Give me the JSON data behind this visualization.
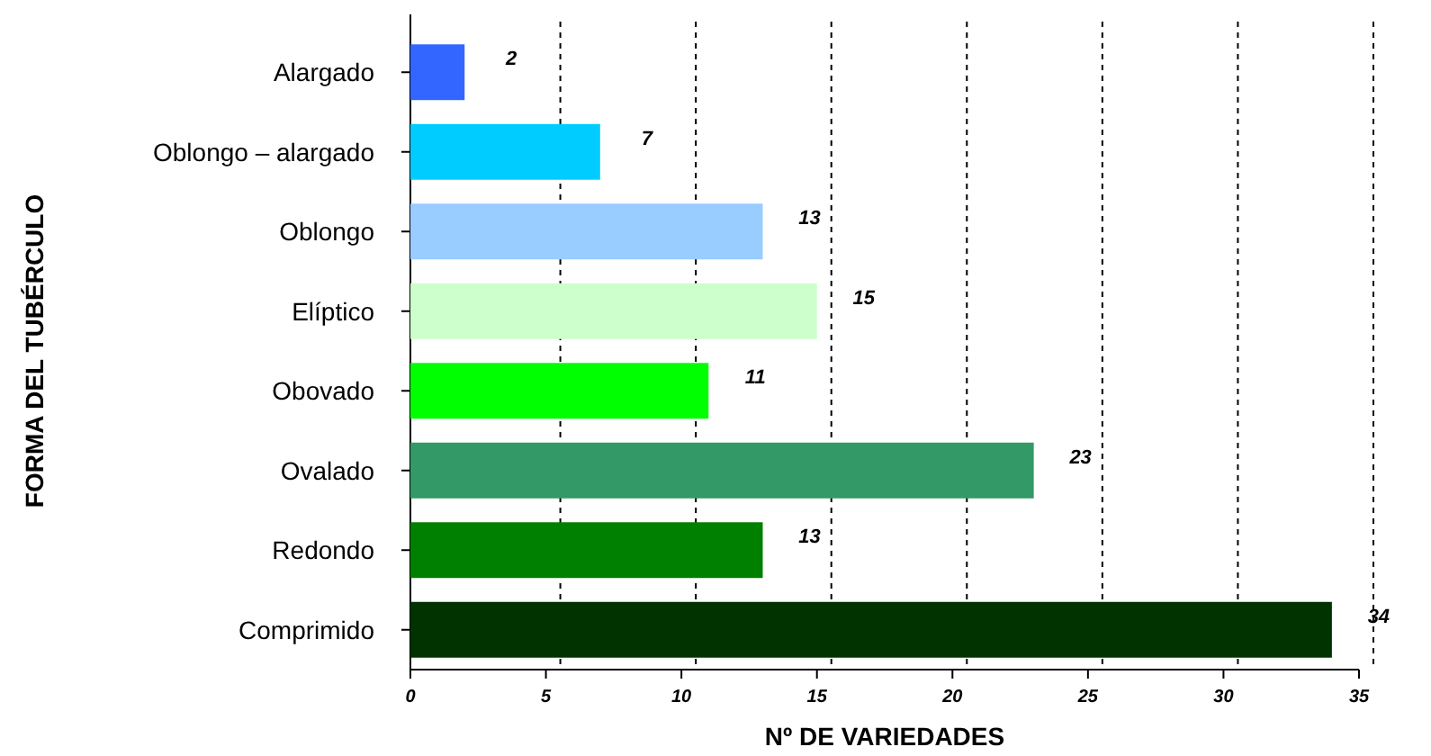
{
  "chart_data": {
    "type": "bar",
    "orientation": "horizontal",
    "xlabel": "Nº DE VARIEDADES",
    "ylabel": "FORMA DEL TUBÉRCULO",
    "categories": [
      "Alargado",
      "Oblongo – alargado",
      "Oblongo",
      "Elíptico",
      "Obovado",
      "Ovalado",
      "Redondo",
      "Comprimido"
    ],
    "values": [
      2,
      7,
      13,
      15,
      11,
      23,
      13,
      34
    ],
    "colors": [
      "#3366ff",
      "#00ccff",
      "#99ccff",
      "#ccffcc",
      "#00ff00",
      "#339966",
      "#008000",
      "#003300"
    ],
    "xlim": [
      0,
      35
    ],
    "xticks": [
      0,
      5,
      10,
      15,
      20,
      25,
      30,
      35
    ],
    "grid": "x",
    "data_labels": true
  }
}
